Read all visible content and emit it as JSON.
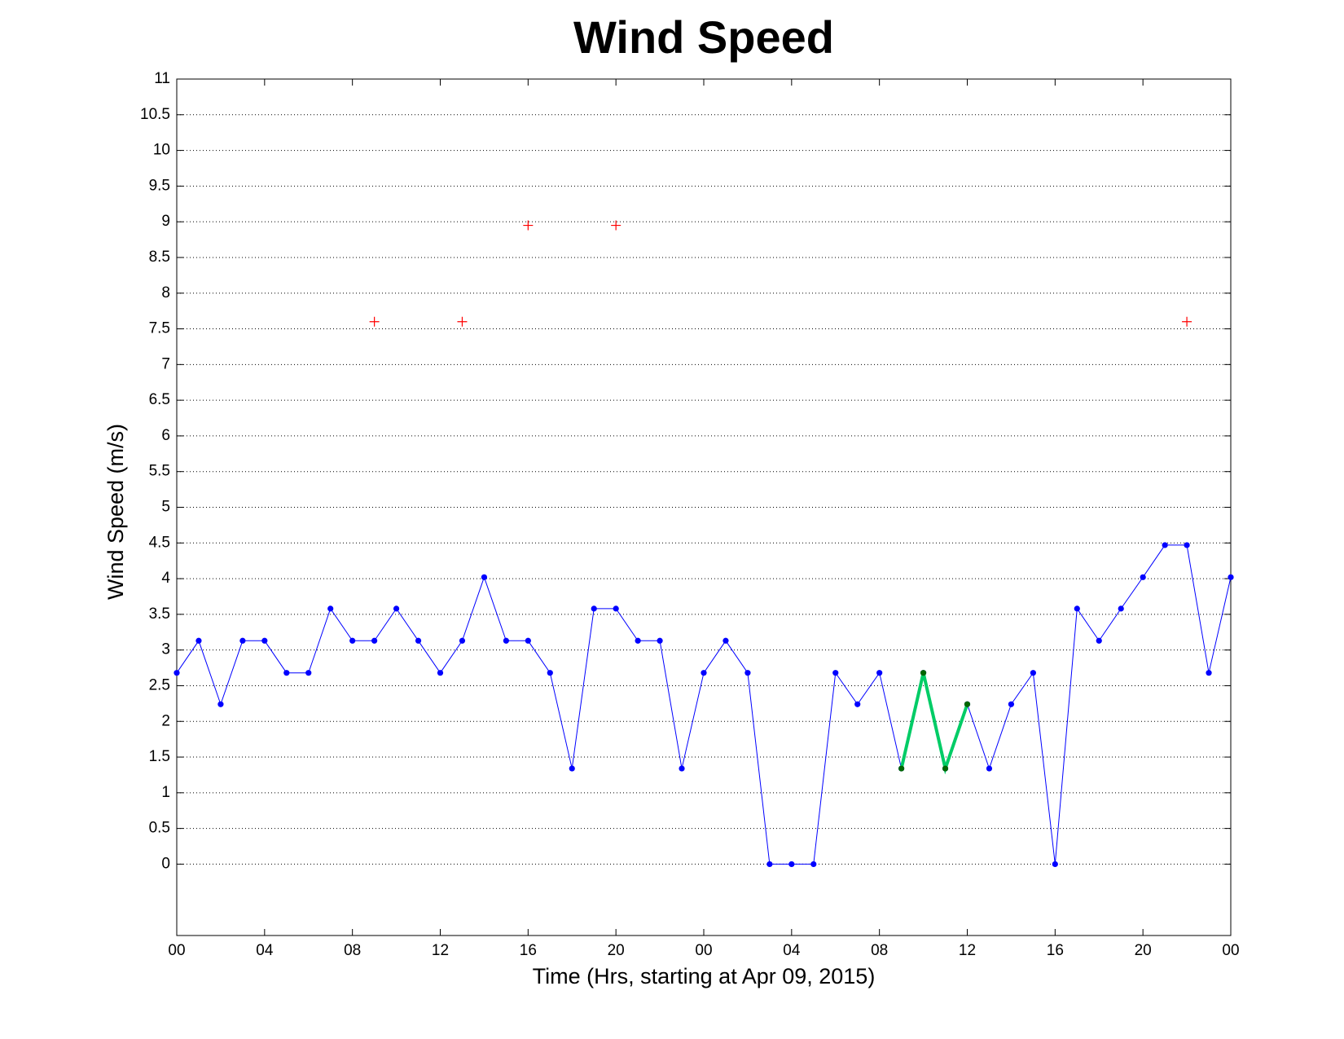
{
  "chart_data": {
    "type": "line",
    "title": "Wind Speed",
    "x_label": "Time (Hrs, starting at Apr 09, 2015)",
    "y_label": "Wind Speed (m/s)",
    "xlim": [
      0,
      48
    ],
    "xticks": [
      {
        "value": 0,
        "label": "00"
      },
      {
        "value": 4,
        "label": "04"
      },
      {
        "value": 8,
        "label": "08"
      },
      {
        "value": 12,
        "label": "12"
      },
      {
        "value": 16,
        "label": "16"
      },
      {
        "value": 20,
        "label": "20"
      },
      {
        "value": 24,
        "label": "00"
      },
      {
        "value": 28,
        "label": "04"
      },
      {
        "value": 32,
        "label": "08"
      },
      {
        "value": 36,
        "label": "12"
      },
      {
        "value": 40,
        "label": "16"
      },
      {
        "value": 44,
        "label": "20"
      },
      {
        "value": 48,
        "label": "00"
      }
    ],
    "ylim": [
      -1,
      11
    ],
    "yticks": [
      0,
      0.5,
      1,
      1.5,
      2,
      2.5,
      3,
      3.5,
      4,
      4.5,
      5,
      5.5,
      6,
      6.5,
      7,
      7.5,
      8,
      8.5,
      9,
      9.5,
      10,
      10.5,
      11
    ],
    "grid": true,
    "series": [
      {
        "color": "#0000ff",
        "marker_color": "#0000ff",
        "marker": "dot",
        "line_width": 1,
        "x": [
          0,
          1,
          2,
          3,
          4,
          5,
          6,
          7,
          8,
          9,
          10,
          11,
          12,
          13,
          14,
          15,
          16,
          17,
          18,
          19,
          20,
          21,
          22,
          23,
          24,
          25,
          26,
          27,
          28,
          29,
          30,
          31,
          32,
          33,
          34,
          35,
          36,
          37,
          38,
          39,
          40,
          41,
          42,
          43,
          44,
          45,
          46,
          47,
          48
        ],
        "values": [
          2.68,
          3.13,
          2.24,
          3.13,
          3.13,
          2.68,
          2.68,
          3.58,
          3.13,
          3.13,
          3.58,
          3.13,
          2.68,
          3.13,
          4.02,
          3.13,
          3.13,
          2.68,
          1.34,
          3.58,
          3.58,
          3.13,
          3.13,
          1.34,
          2.68,
          3.13,
          2.68,
          0,
          0,
          0,
          2.68,
          2.24,
          2.68,
          1.34,
          2.68,
          1.34,
          2.24,
          1.34,
          2.24,
          2.68,
          0,
          3.58,
          3.13,
          3.58,
          4.02,
          4.47,
          4.47,
          2.68,
          4.02
        ]
      },
      {
        "color": "#00cc66",
        "marker_color": "#006600",
        "marker": "dot",
        "line_width": 4,
        "x": [
          33,
          34,
          35,
          36
        ],
        "values": [
          1.34,
          2.68,
          1.34,
          2.24
        ]
      },
      {
        "color": "#ff0000",
        "marker_color": "#ff0000",
        "marker": "plus",
        "line_width": 0,
        "x": [
          9,
          13,
          16,
          20,
          46
        ],
        "values": [
          7.6,
          7.6,
          8.95,
          8.95,
          7.6
        ]
      }
    ]
  }
}
